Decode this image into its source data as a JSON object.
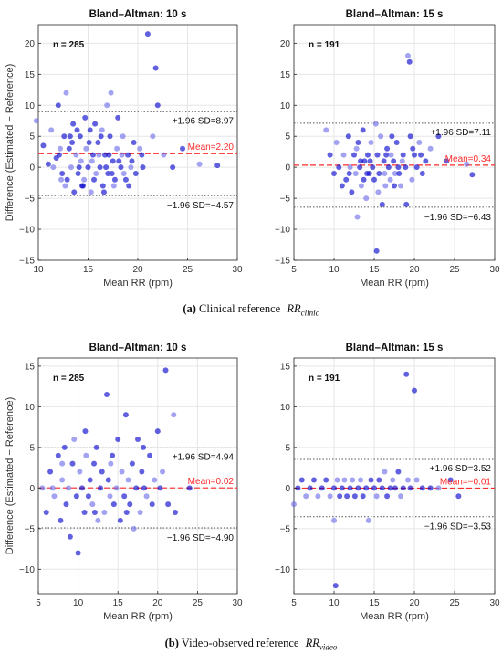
{
  "colors": {
    "point_dark": "#0000cc",
    "point_light": "#6a6ae8",
    "mean_line": "#ff2a2a",
    "sd_line": "#555555",
    "axis": "#262626",
    "grid": "#e6e6e6"
  },
  "captions": {
    "a": {
      "letter": "(a)",
      "text": "Clinical reference",
      "symbol": "RR",
      "subscript": "clinic"
    },
    "b": {
      "letter": "(b)",
      "text": "Video-observed reference",
      "symbol": "RR",
      "subscript": "video"
    }
  },
  "chart_data": [
    {
      "id": "a1",
      "type": "scatter",
      "title": "Bland–Altman: 10 s",
      "xlabel": "Mean RR (rpm)",
      "ylabel": "Difference (Estimated − Reference)",
      "xlim": [
        10,
        30
      ],
      "ylim": [
        -15,
        23
      ],
      "xticks": [
        10,
        15,
        20,
        25,
        30
      ],
      "yticks": [
        -15,
        -10,
        -5,
        0,
        5,
        10,
        15,
        20
      ],
      "grid": true,
      "n_label": "n = 285",
      "mean": 2.2,
      "upper": 8.97,
      "lower": -4.57,
      "mean_label": "Mean=2.20",
      "upper_label": "+1.96 SD=8.97",
      "lower_label": "−1.96 SD=−4.57",
      "points": [
        [
          9.8,
          7.5
        ],
        [
          10.5,
          3.5
        ],
        [
          11,
          0.5
        ],
        [
          11.3,
          6
        ],
        [
          11.8,
          1.5
        ],
        [
          12,
          10
        ],
        [
          12.2,
          3
        ],
        [
          12.4,
          -1
        ],
        [
          12.6,
          5
        ],
        [
          12.8,
          12
        ],
        [
          12.9,
          -2
        ],
        [
          13.1,
          3
        ],
        [
          13.3,
          0
        ],
        [
          13.5,
          7
        ],
        [
          13.6,
          -4
        ],
        [
          13.8,
          2
        ],
        [
          14,
          -1
        ],
        [
          14.2,
          5
        ],
        [
          14.3,
          1
        ],
        [
          14.5,
          -3
        ],
        [
          14.7,
          8
        ],
        [
          14.8,
          3
        ],
        [
          15,
          0
        ],
        [
          15.2,
          6
        ],
        [
          15.3,
          -4
        ],
        [
          15.5,
          2
        ],
        [
          15.7,
          7
        ],
        [
          15.8,
          -1
        ],
        [
          16,
          4
        ],
        [
          16.2,
          0
        ],
        [
          16.4,
          6
        ],
        [
          16.5,
          -3
        ],
        [
          16.7,
          2
        ],
        [
          16.9,
          10
        ],
        [
          17,
          -1
        ],
        [
          17.2,
          5
        ],
        [
          17.3,
          12
        ],
        [
          17.5,
          1
        ],
        [
          17.7,
          -2
        ],
        [
          17.9,
          3
        ],
        [
          18,
          8
        ],
        [
          18.3,
          0
        ],
        [
          18.5,
          5
        ],
        [
          18.8,
          -2
        ],
        [
          19,
          2
        ],
        [
          19.3,
          0
        ],
        [
          19.6,
          4
        ],
        [
          19.8,
          -1
        ],
        [
          20.2,
          3
        ],
        [
          20.5,
          0
        ],
        [
          21,
          21.5
        ],
        [
          21.5,
          5
        ],
        [
          21.8,
          16
        ],
        [
          22,
          10
        ],
        [
          22.6,
          2
        ],
        [
          23.5,
          0
        ],
        [
          24.5,
          3
        ],
        [
          26.2,
          0.5
        ],
        [
          28,
          0.3
        ],
        [
          12.1,
          2
        ],
        [
          12.7,
          -3
        ],
        [
          13.4,
          4
        ],
        [
          14.1,
          0
        ],
        [
          14.6,
          -2
        ],
        [
          15.1,
          4
        ],
        [
          15.6,
          -2
        ],
        [
          16.1,
          2
        ],
        [
          16.6,
          -4
        ],
        [
          17.1,
          2
        ],
        [
          17.6,
          -3
        ],
        [
          18.1,
          1
        ],
        [
          19.1,
          -3
        ],
        [
          12.3,
          -2
        ],
        [
          13.2,
          5
        ],
        [
          14.4,
          -3
        ],
        [
          15.4,
          1
        ],
        [
          16.3,
          5
        ],
        [
          17.4,
          -1
        ],
        [
          18.4,
          2
        ],
        [
          19.4,
          1
        ],
        [
          20.4,
          2
        ],
        [
          11.5,
          0
        ],
        [
          13.9,
          6
        ],
        [
          16.8,
          0
        ],
        [
          18.6,
          -1
        ]
      ]
    },
    {
      "id": "a2",
      "type": "scatter",
      "title": "Bland–Altman: 15 s",
      "xlabel": "Mean RR (rpm)",
      "ylabel": "",
      "xlim": [
        5,
        30
      ],
      "ylim": [
        -15,
        23
      ],
      "xticks": [
        5,
        10,
        15,
        20,
        25,
        30
      ],
      "yticks": [
        -15,
        -10,
        -5,
        0,
        5,
        10,
        15,
        20
      ],
      "grid": true,
      "n_label": "n = 191",
      "mean": 0.34,
      "upper": 7.11,
      "lower": -6.43,
      "mean_label": "Mean=0.34",
      "upper_label": "+1.96 SD=7.11",
      "lower_label": "−1.96 SD=−6.43",
      "points": [
        [
          9,
          6
        ],
        [
          9.5,
          2
        ],
        [
          10,
          -1
        ],
        [
          10.3,
          4
        ],
        [
          10.6,
          0
        ],
        [
          11,
          -3
        ],
        [
          11.2,
          2
        ],
        [
          11.5,
          -2
        ],
        [
          11.8,
          5
        ],
        [
          12,
          0
        ],
        [
          12.2,
          -4
        ],
        [
          12.5,
          2
        ],
        [
          12.7,
          -1
        ],
        [
          13,
          4
        ],
        [
          13.2,
          0
        ],
        [
          13.4,
          -3
        ],
        [
          13.6,
          6
        ],
        [
          13.8,
          1
        ],
        [
          14,
          -5
        ],
        [
          14.2,
          2
        ],
        [
          14.4,
          -1
        ],
        [
          14.6,
          4
        ],
        [
          14.8,
          0
        ],
        [
          15,
          -2
        ],
        [
          15.2,
          7
        ],
        [
          15.4,
          2
        ],
        [
          15.6,
          -1
        ],
        [
          15.8,
          5
        ],
        [
          16,
          -6
        ],
        [
          16.2,
          1
        ],
        [
          16.4,
          -3
        ],
        [
          16.6,
          3
        ],
        [
          16.8,
          0
        ],
        [
          17,
          -2
        ],
        [
          17.2,
          5
        ],
        [
          17.4,
          1
        ],
        [
          17.6,
          -1
        ],
        [
          17.8,
          4
        ],
        [
          18,
          0
        ],
        [
          18.3,
          -3
        ],
        [
          18.6,
          2
        ],
        [
          18.9,
          0
        ],
        [
          19.2,
          18
        ],
        [
          19.4,
          17
        ],
        [
          19.5,
          5
        ],
        [
          19.7,
          -2
        ],
        [
          20,
          2
        ],
        [
          20.3,
          0
        ],
        [
          20.6,
          4
        ],
        [
          21,
          -1
        ],
        [
          21.4,
          1
        ],
        [
          22,
          3
        ],
        [
          23,
          5
        ],
        [
          24,
          1
        ],
        [
          26.5,
          0.5
        ],
        [
          27.2,
          -1.2
        ],
        [
          15.3,
          -13.5
        ],
        [
          12.9,
          -8
        ],
        [
          19,
          -6
        ],
        [
          11.9,
          -1
        ],
        [
          12.8,
          3
        ],
        [
          13.7,
          -2
        ],
        [
          14.5,
          1
        ],
        [
          15.5,
          -4
        ],
        [
          16.5,
          2
        ],
        [
          17.5,
          -3
        ],
        [
          18.5,
          1
        ],
        [
          19.8,
          3
        ],
        [
          20.8,
          2
        ],
        [
          16.3,
          -1
        ],
        [
          13.3,
          1
        ],
        [
          14.1,
          -1
        ],
        [
          17.1,
          2
        ],
        [
          18.1,
          -1
        ]
      ]
    },
    {
      "id": "b1",
      "type": "scatter",
      "title": "Bland–Altman: 10 s",
      "xlabel": "Mean RR (rpm)",
      "ylabel": "Difference (Estimated − Reference)",
      "xlim": [
        5,
        30
      ],
      "ylim": [
        -13,
        16
      ],
      "xticks": [
        5,
        10,
        15,
        20,
        25,
        30
      ],
      "yticks": [
        -10,
        -5,
        0,
        5,
        10,
        15
      ],
      "grid": true,
      "n_label": "n = 285",
      "mean": 0.02,
      "upper": 4.94,
      "lower": -4.9,
      "mean_label": "Mean=0.02",
      "upper_label": "+1.96 SD=4.94",
      "lower_label": "−1.96 SD=−4.90",
      "points": [
        [
          5.5,
          0
        ],
        [
          6,
          -3
        ],
        [
          6.5,
          2
        ],
        [
          7,
          -1
        ],
        [
          7.5,
          4
        ],
        [
          7.8,
          -4
        ],
        [
          8,
          1
        ],
        [
          8.3,
          5
        ],
        [
          8.5,
          -2
        ],
        [
          8.8,
          0
        ],
        [
          9,
          -6
        ],
        [
          9.3,
          3
        ],
        [
          9.5,
          6
        ],
        [
          9.8,
          -1
        ],
        [
          10,
          -8
        ],
        [
          10.2,
          2
        ],
        [
          10.5,
          0
        ],
        [
          10.8,
          -3
        ],
        [
          11,
          4
        ],
        [
          11.3,
          -1
        ],
        [
          11.5,
          1
        ],
        [
          11.8,
          -2
        ],
        [
          12,
          3
        ],
        [
          12.3,
          5
        ],
        [
          12.5,
          -4
        ],
        [
          12.8,
          0
        ],
        [
          13,
          2
        ],
        [
          13.3,
          -3
        ],
        [
          13.6,
          11.5
        ],
        [
          13.8,
          1
        ],
        [
          14,
          -1
        ],
        [
          14.3,
          4
        ],
        [
          14.5,
          -2
        ],
        [
          14.8,
          0
        ],
        [
          15,
          6
        ],
        [
          15.3,
          -4
        ],
        [
          15.5,
          2
        ],
        [
          15.8,
          -1
        ],
        [
          16,
          9
        ],
        [
          16.3,
          1
        ],
        [
          16.5,
          -2
        ],
        [
          16.8,
          3
        ],
        [
          17,
          -5
        ],
        [
          17.3,
          0
        ],
        [
          17.5,
          6
        ],
        [
          17.8,
          -3
        ],
        [
          18,
          2
        ],
        [
          18.3,
          0
        ],
        [
          18.6,
          -1
        ],
        [
          19,
          4
        ],
        [
          19.3,
          -2
        ],
        [
          19.6,
          1
        ],
        [
          20,
          7
        ],
        [
          20.3,
          0
        ],
        [
          20.6,
          2
        ],
        [
          21,
          14.5
        ],
        [
          21.3,
          -2
        ],
        [
          22,
          9
        ],
        [
          22.2,
          -3
        ],
        [
          24,
          0
        ],
        [
          8,
          3
        ],
        [
          10.9,
          7
        ],
        [
          12.1,
          -3
        ],
        [
          14.1,
          3
        ],
        [
          16.1,
          -3
        ],
        [
          18.2,
          5
        ],
        [
          6.8,
          0
        ]
      ]
    },
    {
      "id": "b2",
      "type": "scatter",
      "title": "Bland–Altman: 15 s",
      "xlabel": "Mean RR (rpm)",
      "ylabel": "",
      "xlim": [
        5,
        30
      ],
      "ylim": [
        -13,
        16
      ],
      "xticks": [
        5,
        10,
        15,
        20,
        25,
        30
      ],
      "yticks": [
        -10,
        -5,
        0,
        5,
        10,
        15
      ],
      "grid": true,
      "n_label": "n = 191",
      "mean": -0.01,
      "upper": 3.52,
      "lower": -3.53,
      "mean_label": "Mean=−0.01",
      "upper_label": "+1.96 SD=3.52",
      "lower_label": "−1.96 SD=−3.53",
      "points": [
        [
          5,
          -2
        ],
        [
          5.5,
          0
        ],
        [
          6,
          1
        ],
        [
          6.5,
          -1
        ],
        [
          7,
          0
        ],
        [
          7.5,
          1
        ],
        [
          8,
          -1
        ],
        [
          8.5,
          0
        ],
        [
          9,
          1
        ],
        [
          9.5,
          -1
        ],
        [
          10,
          0
        ],
        [
          10.2,
          -12
        ],
        [
          10.4,
          1
        ],
        [
          10.7,
          -1
        ],
        [
          11,
          0
        ],
        [
          11.3,
          1
        ],
        [
          11.6,
          -1
        ],
        [
          12,
          0
        ],
        [
          12.3,
          1
        ],
        [
          12.6,
          -1
        ],
        [
          13,
          0
        ],
        [
          13.3,
          1
        ],
        [
          13.6,
          -1
        ],
        [
          14,
          0
        ],
        [
          14.3,
          -4
        ],
        [
          14.6,
          1
        ],
        [
          15,
          0
        ],
        [
          15.3,
          -1
        ],
        [
          15.6,
          1
        ],
        [
          16,
          0
        ],
        [
          16.3,
          2
        ],
        [
          16.6,
          -1
        ],
        [
          17,
          0
        ],
        [
          17.3,
          1
        ],
        [
          17.6,
          0
        ],
        [
          18,
          2
        ],
        [
          18.3,
          -1
        ],
        [
          18.6,
          0
        ],
        [
          19,
          14
        ],
        [
          19.2,
          1
        ],
        [
          19.5,
          0
        ],
        [
          20,
          12
        ],
        [
          20.3,
          1
        ],
        [
          21,
          0
        ],
        [
          22,
          0
        ],
        [
          23,
          0
        ],
        [
          24.5,
          1
        ],
        [
          25.5,
          -1
        ],
        [
          10,
          -4
        ]
      ]
    }
  ]
}
